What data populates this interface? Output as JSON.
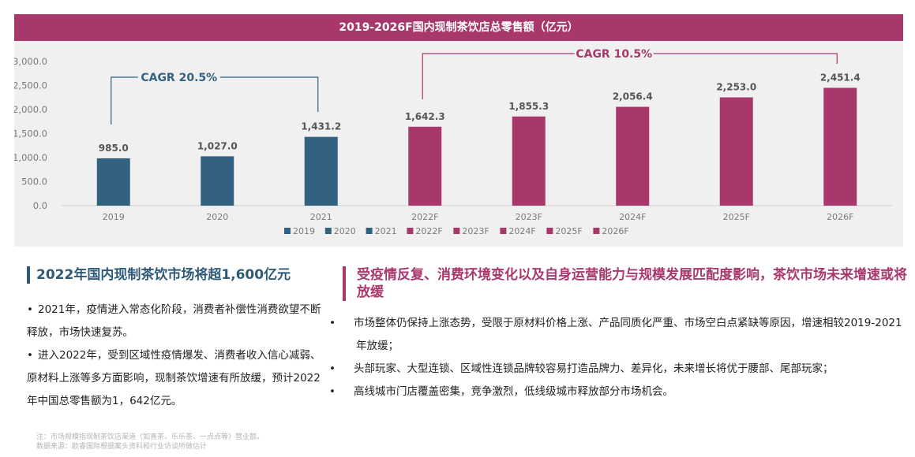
{
  "chart_data": {
    "type": "bar",
    "title": "2019-2026F国内现制茶饮店总零售额（亿元）",
    "categories": [
      "2019",
      "2020",
      "2021",
      "2022F",
      "2023F",
      "2024F",
      "2025F",
      "2026F"
    ],
    "values": [
      985.0,
      1027.0,
      1431.2,
      1642.3,
      1855.3,
      2056.4,
      2253.0,
      2451.4
    ],
    "value_labels": [
      "985.0",
      "1,027.0",
      "1,431.2",
      "1,642.3",
      "1,855.3",
      "2,056.4",
      "2,253.0",
      "2,451.4"
    ],
    "ylim": [
      0,
      3000
    ],
    "yticks": [
      "0.0",
      "500.0",
      "1,000.0",
      "1,500.0",
      "2,000.0",
      "2,500.0",
      "3,000.0"
    ],
    "colors": {
      "historical": "#336280",
      "forecast": "#a8386c"
    },
    "legend": [
      "2019",
      "2020",
      "2021",
      "2022F",
      "2023F",
      "2024F",
      "2025F",
      "2026F"
    ],
    "legend_position": "bottom",
    "grid": false,
    "annotations": [
      {
        "text": "CAGR  20.5%",
        "from": "2019",
        "to": "2021"
      },
      {
        "text": "CAGR 10.5%",
        "from": "2022F",
        "to": "2026F"
      }
    ]
  },
  "left": {
    "heading": "2022年国内现制茶饮市场将超1,600亿元",
    "bullets": [
      "2021年，疫情进入常态化阶段，消费者补偿性消费欲望不断释放，市场快速复苏。",
      "进入2022年，受到区域性疫情爆发、消费者收入信心减弱、原材料上涨等多方面影响，现制茶饮增速有所放缓，预计2022年中国总零售额为1，642亿元。"
    ]
  },
  "right": {
    "heading": "受疫情反复、消费环境变化以及自身运营能力与规模发展匹配度影响，茶饮市场未来增速或将放缓",
    "bullets": [
      "市场整体仍保持上涨态势，受限于原材料价格上涨、产品同质化严重、市场空白点紧缺等原因，增速相较2019-2021年放缓；",
      "头部玩家、大型连锁、区域性连锁品牌较容易打造品牌力、差异化，未来增长将优于腰部、尾部玩家；",
      "高线城市门店覆盖密集，竞争激烈，低线级城市释放部分市场机会。"
    ]
  },
  "footnote": {
    "note": "注：市场规模指现制茶饮店渠道（如喜茶、乐乐茶、一点点等）营业额。",
    "source": "数据来源：欧睿国际根据案头资料和行业访谈所做估计"
  },
  "bullet_symbol": "•"
}
